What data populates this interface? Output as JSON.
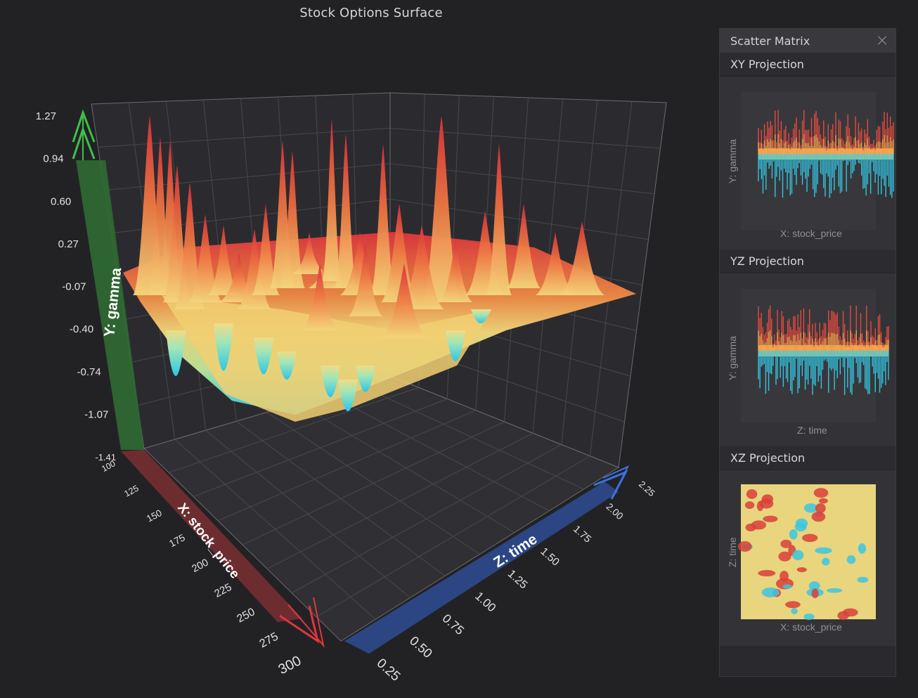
{
  "title": "Stock Options Surface",
  "colors": {
    "background": "#222225",
    "x_axis": "#9a3a3a",
    "y_axis": "#2f6b33",
    "z_axis": "#2d4a8e",
    "surface_low": "#2fd0e8",
    "surface_mid": "#f2e08a",
    "surface_high": "#e0363c"
  },
  "chart_data": {
    "type": "surface",
    "title": "Stock Options Surface",
    "x_axis": {
      "label": "X: stock_price",
      "ticks": [
        "100",
        "125",
        "150",
        "175",
        "200",
        "225",
        "250",
        "275",
        "300"
      ],
      "range": [
        100,
        300
      ]
    },
    "y_axis": {
      "label": "Y: gamma",
      "ticks": [
        "-1.41",
        "-1.07",
        "-0.74",
        "-0.40",
        "-0.07",
        "0.27",
        "0.60",
        "0.94",
        "1.27"
      ],
      "range": [
        -1.41,
        1.27
      ]
    },
    "z_axis": {
      "label": "Z: time",
      "ticks": [
        "0.25",
        "0.50",
        "0.75",
        "1.00",
        "1.25",
        "1.50",
        "1.75",
        "2.00",
        "2.25"
      ],
      "range": [
        0.25,
        2.25
      ]
    },
    "colormap": "cyan-yellow-red",
    "grid": true
  },
  "panel": {
    "title": "Scatter Matrix",
    "close_icon": "close-icon",
    "projections": [
      {
        "title": "XY Projection",
        "xlabel": "X: stock_price",
        "ylabel": "Y: gamma"
      },
      {
        "title": "YZ Projection",
        "xlabel": "Z: time",
        "ylabel": "Y: gamma"
      },
      {
        "title": "XZ Projection",
        "xlabel": "X: stock_price",
        "ylabel": "Z: time"
      }
    ]
  }
}
